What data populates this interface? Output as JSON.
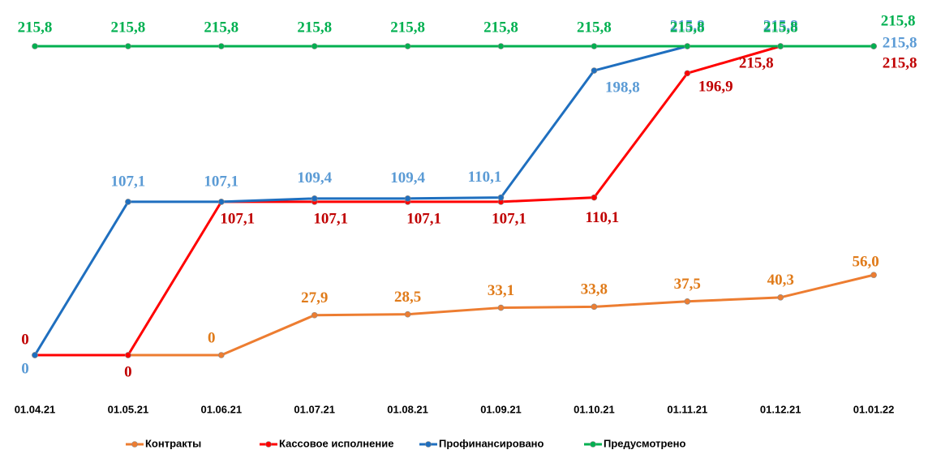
{
  "chart_data": {
    "type": "line",
    "categories": [
      "01.04.21",
      "01.05.21",
      "01.06.21",
      "01.07.21",
      "01.08.21",
      "01.09.21",
      "01.10.21",
      "01.11.21",
      "01.12.21",
      "01.01.22"
    ],
    "series": [
      {
        "name": "Контракты",
        "color": "#ed7d31",
        "label_color": "#e07b1a",
        "values": [
          0,
          0,
          0,
          27.9,
          28.5,
          33.1,
          33.8,
          37.5,
          40.3,
          56.0
        ],
        "value_labels": [
          null,
          null,
          "0",
          "27,9",
          "28,5",
          "33,1",
          "33,8",
          "37,5",
          "40,3",
          "56,0"
        ]
      },
      {
        "name": "Кассовое исполнение",
        "color": "#ff0000",
        "label_color": "#c00000",
        "values": [
          0,
          0,
          107.1,
          107.1,
          107.1,
          107.1,
          110.1,
          196.9,
          215.8,
          215.8
        ],
        "value_labels": [
          "0",
          "0",
          "107,1",
          "107,1",
          "107,1",
          "107,1",
          "110,1",
          "196,9",
          "215,8",
          "215,8"
        ]
      },
      {
        "name": "Профинансировано",
        "color": "#1f6fbf",
        "label_color": "#5b9bd5",
        "values": [
          0,
          107.1,
          107.1,
          109.4,
          109.4,
          110.1,
          198.8,
          215.8,
          215.8,
          215.8
        ],
        "value_labels": [
          "0",
          "107,1",
          "107,1",
          "109,4",
          "109,4",
          "110,1",
          "198,8",
          "215,8",
          "215,8",
          "215,8"
        ]
      },
      {
        "name": "Предусмотрено",
        "color": "#00b050",
        "label_color": "#00b050",
        "values": [
          215.8,
          215.8,
          215.8,
          215.8,
          215.8,
          215.8,
          215.8,
          215.8,
          215.8,
          215.8
        ],
        "value_labels": [
          "215,8",
          "215,8",
          "215,8",
          "215,8",
          "215,8",
          "215,8",
          "215,8",
          "215,8",
          "215,8",
          "215,8"
        ]
      }
    ],
    "legend": "bottom"
  }
}
